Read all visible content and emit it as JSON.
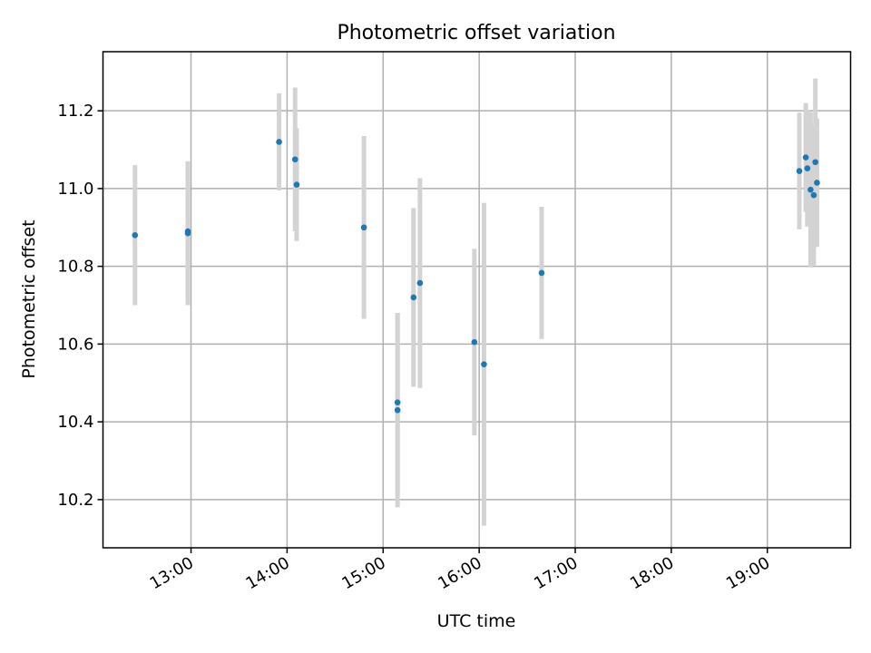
{
  "chart_data": {
    "type": "scatter",
    "title": "Photometric offset variation",
    "xlabel": "UTC time",
    "ylabel": "Photometric offset",
    "x_type": "time",
    "xlim": [
      "12:05",
      "19:52"
    ],
    "ylim": [
      10.076,
      11.352
    ],
    "x_ticks": [
      "13:00",
      "14:00",
      "15:00",
      "16:00",
      "17:00",
      "18:00",
      "19:00"
    ],
    "y_ticks": [
      10.2,
      10.4,
      10.6,
      10.8,
      11.0,
      11.2
    ],
    "grid": true,
    "marker_color": "#1f77b4",
    "errorbar_color": "#d3d3d3",
    "points": [
      {
        "x": "12:25",
        "y": 10.88,
        "yerr": 0.18
      },
      {
        "x": "12:58",
        "y": 10.89,
        "yerr": 0.18
      },
      {
        "x": "12:58",
        "y": 10.885,
        "yerr": 0.185
      },
      {
        "x": "13:55",
        "y": 11.12,
        "yerr": 0.125
      },
      {
        "x": "14:05",
        "y": 11.075,
        "yerr": 0.185
      },
      {
        "x": "14:06",
        "y": 11.01,
        "yerr": 0.145
      },
      {
        "x": "14:48",
        "y": 10.9,
        "yerr": 0.235
      },
      {
        "x": "15:09",
        "y": 10.45,
        "yerr": 0.23
      },
      {
        "x": "15:09",
        "y": 10.43,
        "yerr": 0.25
      },
      {
        "x": "15:19",
        "y": 10.72,
        "yerr": 0.23
      },
      {
        "x": "15:23",
        "y": 10.757,
        "yerr": 0.27
      },
      {
        "x": "15:57",
        "y": 10.605,
        "yerr": 0.24
      },
      {
        "x": "16:03",
        "y": 10.548,
        "yerr": 0.415
      },
      {
        "x": "16:39",
        "y": 10.783,
        "yerr": 0.17
      },
      {
        "x": "19:20",
        "y": 11.045,
        "yerr": 0.15
      },
      {
        "x": "19:24",
        "y": 11.08,
        "yerr": 0.14
      },
      {
        "x": "19:25",
        "y": 11.052,
        "yerr": 0.15
      },
      {
        "x": "19:27",
        "y": 10.997,
        "yerr": 0.2
      },
      {
        "x": "19:29",
        "y": 10.983,
        "yerr": 0.18
      },
      {
        "x": "19:30",
        "y": 11.068,
        "yerr": 0.215
      },
      {
        "x": "19:31",
        "y": 11.015,
        "yerr": 0.165
      }
    ]
  }
}
